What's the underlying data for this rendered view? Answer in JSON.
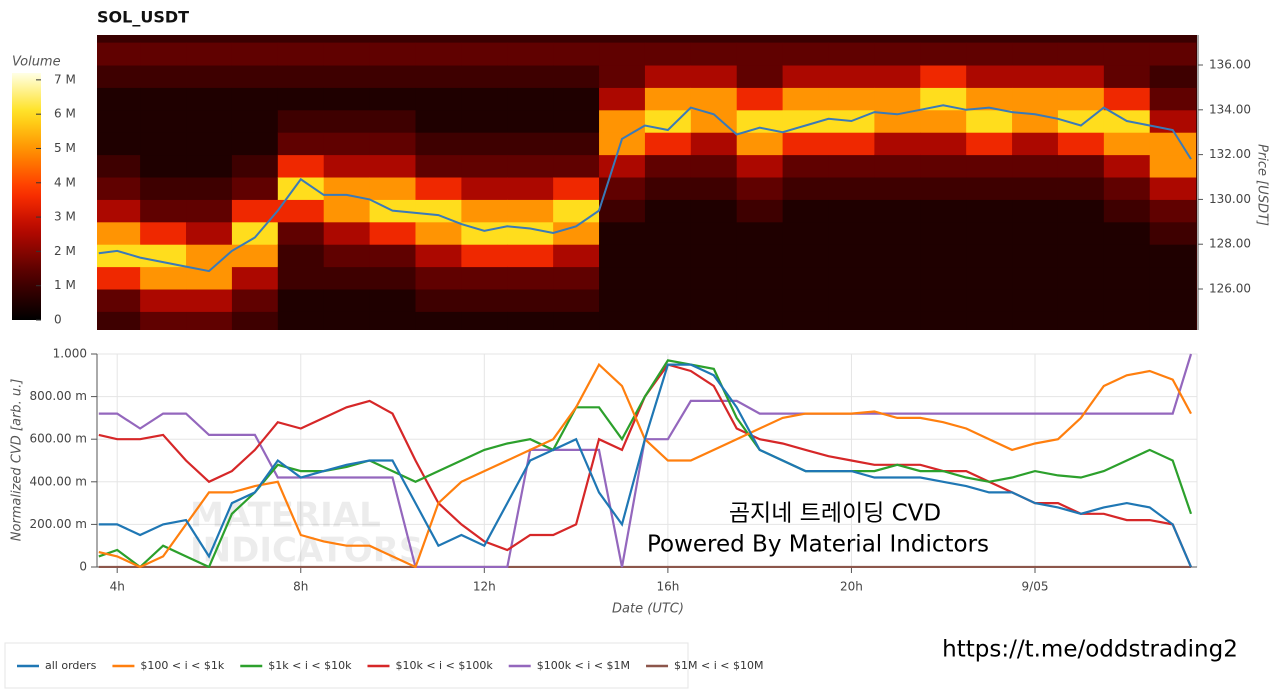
{
  "chart_data": [
    {
      "type": "heatmap",
      "title": "SOL_USDT",
      "x_bins": [
        3.5,
        4.5,
        5.5,
        6.5,
        7.5,
        8.5,
        9.5,
        10.5,
        11.5,
        12.5,
        13.5,
        14.5,
        15.5,
        16.5,
        17.5,
        18.5,
        19.5,
        20.5,
        21.5,
        22.5,
        23.5,
        24.5,
        25.5,
        26.5,
        27.5
      ],
      "y_bins": [
        124,
        125,
        126,
        127,
        128,
        129,
        130,
        131,
        132,
        133,
        134,
        135,
        136,
        137
      ],
      "z": [
        [
          1000000,
          1500000,
          3500000,
          6000000,
          5000000,
          2500000,
          1500000,
          1000000,
          500000,
          500000,
          500000,
          1000000,
          1500000
        ],
        [
          1500000,
          2500000,
          5000000,
          6000000,
          3500000,
          1500000,
          1000000,
          500000,
          500000,
          500000,
          500000,
          1000000,
          1500000
        ],
        [
          1500000,
          2500000,
          5000000,
          5000000,
          2500000,
          1500000,
          1000000,
          500000,
          500000,
          500000,
          500000,
          1000000,
          1500000
        ],
        [
          1000000,
          1500000,
          2500000,
          5000000,
          6000000,
          3500000,
          1500000,
          1000000,
          500000,
          500000,
          500000,
          1000000,
          1500000
        ],
        [
          500000,
          500000,
          1000000,
          1000000,
          1500000,
          3500000,
          6000000,
          3500000,
          1500000,
          1000000,
          500000,
          1000000,
          1500000
        ],
        [
          500000,
          500000,
          1000000,
          1500000,
          2500000,
          5000000,
          5000000,
          2500000,
          1500000,
          1000000,
          500000,
          1000000,
          1500000
        ],
        [
          500000,
          500000,
          1000000,
          1500000,
          3500000,
          6000000,
          5000000,
          2500000,
          1500000,
          1000000,
          500000,
          1000000,
          1500000
        ],
        [
          500000,
          1000000,
          1500000,
          2500000,
          5000000,
          6000000,
          3500000,
          1500000,
          1000000,
          500000,
          500000,
          1000000,
          1500000
        ],
        [
          500000,
          1000000,
          1500000,
          3500000,
          6000000,
          5000000,
          2500000,
          1500000,
          1000000,
          500000,
          500000,
          1000000,
          1500000
        ],
        [
          500000,
          1000000,
          1500000,
          3500000,
          6000000,
          5000000,
          2500000,
          1500000,
          1000000,
          500000,
          500000,
          1000000,
          1500000
        ],
        [
          500000,
          1000000,
          1500000,
          2500000,
          5000000,
          6000000,
          3500000,
          1500000,
          1000000,
          500000,
          500000,
          1000000,
          1500000
        ],
        [
          500000,
          500000,
          500000,
          500000,
          500000,
          1000000,
          1500000,
          2500000,
          5000000,
          5000000,
          2500000,
          1500000,
          1500000
        ],
        [
          500000,
          500000,
          500000,
          500000,
          500000,
          500000,
          1000000,
          1500000,
          3500000,
          6000000,
          5000000,
          2500000,
          1500000
        ],
        [
          500000,
          500000,
          500000,
          500000,
          500000,
          500000,
          1000000,
          1500000,
          2500000,
          5000000,
          5000000,
          2500000,
          1500000
        ],
        [
          500000,
          500000,
          500000,
          500000,
          500000,
          1000000,
          1500000,
          2500000,
          5000000,
          6000000,
          3500000,
          1500000,
          1500000
        ],
        [
          500000,
          500000,
          500000,
          500000,
          500000,
          500000,
          1000000,
          1500000,
          3500000,
          6000000,
          5000000,
          2500000,
          1500000
        ],
        [
          500000,
          500000,
          500000,
          500000,
          500000,
          500000,
          1000000,
          1500000,
          3500000,
          6000000,
          5000000,
          2500000,
          1500000
        ],
        [
          500000,
          500000,
          500000,
          500000,
          500000,
          500000,
          1000000,
          1500000,
          2500000,
          5000000,
          5000000,
          2500000,
          1500000
        ],
        [
          500000,
          500000,
          500000,
          500000,
          500000,
          500000,
          1000000,
          1500000,
          2500000,
          5000000,
          6000000,
          3500000,
          1500000
        ],
        [
          500000,
          500000,
          500000,
          500000,
          500000,
          500000,
          1000000,
          1500000,
          3500000,
          6000000,
          5000000,
          2500000,
          1500000
        ],
        [
          500000,
          500000,
          500000,
          500000,
          500000,
          500000,
          1000000,
          1500000,
          2500000,
          5000000,
          5000000,
          2500000,
          1500000
        ],
        [
          500000,
          500000,
          500000,
          500000,
          500000,
          500000,
          1000000,
          1500000,
          3500000,
          6000000,
          5000000,
          2500000,
          1500000
        ],
        [
          500000,
          500000,
          500000,
          500000,
          500000,
          1000000,
          1500000,
          2500000,
          5000000,
          6000000,
          3500000,
          1500000,
          1500000
        ],
        [
          500000,
          500000,
          500000,
          500000,
          1000000,
          1500000,
          2500000,
          5000000,
          5000000,
          2500000,
          1500000,
          1000000,
          1500000
        ]
      ],
      "colorbar_label": "Volume",
      "zlim": [
        0,
        7200000
      ],
      "zticks": [
        0,
        {
          "value": 1000000,
          "label": "1 M"
        },
        {
          "value": 2000000,
          "label": "2 M"
        },
        {
          "value": 3000000,
          "label": "3 M"
        },
        {
          "value": 4000000,
          "label": "4 M"
        },
        {
          "value": 5000000,
          "label": "5 M"
        },
        {
          "value": 6000000,
          "label": "6 M"
        },
        {
          "value": 7000000,
          "label": "7 M"
        }
      ],
      "xlim": [
        3.56,
        27.53
      ],
      "ylim": [
        124.17,
        137.34
      ],
      "yticks": [
        {
          "value": 126,
          "label": "126.00"
        },
        {
          "value": 128,
          "label": "128.00"
        },
        {
          "value": 130,
          "label": "130.00"
        },
        {
          "value": 132,
          "label": "132.00"
        },
        {
          "value": 134,
          "label": "134.00"
        },
        {
          "value": 136,
          "label": "136.00"
        }
      ],
      "ylabel": "Price [USDT]",
      "line": {
        "color": "#3a7ab8",
        "x": [
          3.6,
          4,
          4.5,
          5,
          5.5,
          6,
          6.5,
          7,
          7.5,
          8,
          8.5,
          9,
          9.5,
          10,
          10.5,
          11,
          11.5,
          12,
          12.5,
          13,
          13.5,
          14,
          14.5,
          15,
          15.5,
          16,
          16.5,
          17,
          17.5,
          18,
          18.5,
          19,
          19.5,
          20,
          20.5,
          21,
          21.5,
          22,
          22.5,
          23,
          23.5,
          24,
          24.5,
          25,
          25.5,
          26,
          26.5,
          27,
          27.4
        ],
        "values": [
          127.6,
          127.7,
          127.4,
          127.2,
          127.0,
          126.8,
          127.7,
          128.3,
          129.5,
          130.9,
          130.2,
          130.2,
          130.0,
          129.5,
          129.4,
          129.3,
          128.9,
          128.6,
          128.8,
          128.7,
          128.5,
          128.8,
          129.5,
          132.7,
          133.3,
          133.1,
          134.1,
          133.8,
          132.9,
          133.2,
          133.0,
          133.3,
          133.6,
          133.5,
          133.9,
          133.8,
          134.0,
          134.2,
          134.0,
          134.1,
          133.9,
          133.8,
          133.6,
          133.3,
          134.1,
          133.5,
          133.3,
          133.1,
          131.8
        ]
      }
    },
    {
      "type": "line",
      "x": [
        3.6,
        4,
        4.5,
        5,
        5.5,
        6,
        6.5,
        7,
        7.5,
        8,
        8.5,
        9,
        9.5,
        10,
        10.5,
        11,
        11.5,
        12,
        12.5,
        13,
        13.5,
        14,
        14.5,
        15,
        15.5,
        16,
        16.5,
        17,
        17.5,
        18,
        18.5,
        19,
        19.5,
        20,
        20.5,
        21,
        21.5,
        22,
        22.5,
        23,
        23.5,
        24,
        24.5,
        25,
        25.5,
        26,
        26.5,
        27,
        27.4
      ],
      "series": [
        {
          "name": "all orders",
          "color": "#1f77b4",
          "values": [
            0.2,
            0.2,
            0.15,
            0.2,
            0.22,
            0.05,
            0.3,
            0.35,
            0.5,
            0.42,
            0.45,
            0.48,
            0.5,
            0.5,
            0.3,
            0.1,
            0.15,
            0.1,
            0.3,
            0.5,
            0.55,
            0.6,
            0.35,
            0.2,
            0.6,
            0.95,
            0.95,
            0.9,
            0.75,
            0.55,
            0.5,
            0.45,
            0.45,
            0.45,
            0.42,
            0.42,
            0.42,
            0.4,
            0.38,
            0.35,
            0.35,
            0.3,
            0.28,
            0.25,
            0.28,
            0.3,
            0.28,
            0.2,
            0.0
          ]
        },
        {
          "name": "$100 < i < $1k",
          "color": "#ff7f0e",
          "values": [
            0.07,
            0.05,
            0.0,
            0.05,
            0.2,
            0.35,
            0.35,
            0.38,
            0.4,
            0.15,
            0.12,
            0.1,
            0.1,
            0.05,
            0.0,
            0.3,
            0.4,
            0.45,
            0.5,
            0.55,
            0.6,
            0.75,
            0.95,
            0.85,
            0.6,
            0.5,
            0.5,
            0.55,
            0.6,
            0.65,
            0.7,
            0.72,
            0.72,
            0.72,
            0.73,
            0.7,
            0.7,
            0.68,
            0.65,
            0.6,
            0.55,
            0.58,
            0.6,
            0.7,
            0.85,
            0.9,
            0.92,
            0.88,
            0.72
          ]
        },
        {
          "name": "$1k < i < $10k",
          "color": "#2ca02c",
          "values": [
            0.05,
            0.08,
            0.0,
            0.1,
            0.05,
            0.0,
            0.25,
            0.35,
            0.48,
            0.45,
            0.45,
            0.47,
            0.5,
            0.45,
            0.4,
            0.45,
            0.5,
            0.55,
            0.58,
            0.6,
            0.55,
            0.75,
            0.75,
            0.6,
            0.8,
            0.97,
            0.95,
            0.93,
            0.7,
            0.55,
            0.5,
            0.45,
            0.45,
            0.45,
            0.45,
            0.48,
            0.45,
            0.45,
            0.42,
            0.4,
            0.42,
            0.45,
            0.43,
            0.42,
            0.45,
            0.5,
            0.55,
            0.5,
            0.25
          ]
        },
        {
          "name": "$10k < i < $100k",
          "color": "#d62728",
          "values": [
            0.62,
            0.6,
            0.6,
            0.62,
            0.5,
            0.4,
            0.45,
            0.55,
            0.68,
            0.65,
            0.7,
            0.75,
            0.78,
            0.72,
            0.5,
            0.3,
            0.2,
            0.12,
            0.08,
            0.15,
            0.15,
            0.2,
            0.6,
            0.55,
            0.8,
            0.95,
            0.92,
            0.85,
            0.65,
            0.6,
            0.58,
            0.55,
            0.52,
            0.5,
            0.48,
            0.48,
            0.48,
            0.45,
            0.45,
            0.4,
            0.35,
            0.3,
            0.3,
            0.25,
            0.25,
            0.22,
            0.22,
            0.2,
            0.0
          ]
        },
        {
          "name": "$100k < i < $1M",
          "color": "#9467bd",
          "values": [
            0.72,
            0.72,
            0.65,
            0.72,
            0.72,
            0.62,
            0.62,
            0.62,
            0.42,
            0.42,
            0.42,
            0.42,
            0.42,
            0.42,
            0.0,
            0.0,
            0.0,
            0.0,
            0.0,
            0.55,
            0.55,
            0.55,
            0.55,
            0.0,
            0.6,
            0.6,
            0.78,
            0.78,
            0.78,
            0.72,
            0.72,
            0.72,
            0.72,
            0.72,
            0.72,
            0.72,
            0.72,
            0.72,
            0.72,
            0.72,
            0.72,
            0.72,
            0.72,
            0.72,
            0.72,
            0.72,
            0.72,
            0.72,
            1.0
          ]
        },
        {
          "name": "$1M < i < $10M",
          "color": "#8c564b",
          "values": [
            0,
            0,
            0,
            0,
            0,
            0,
            0,
            0,
            0,
            0,
            0,
            0,
            0,
            0,
            0,
            0,
            0,
            0,
            0,
            0,
            0,
            0,
            0,
            0,
            0,
            0,
            0,
            0,
            0,
            0,
            0,
            0,
            0,
            0,
            0,
            0,
            0,
            0,
            0,
            0,
            0,
            0,
            0,
            0,
            0,
            0,
            0,
            0,
            0
          ]
        }
      ],
      "xlim": [
        3.56,
        27.53
      ],
      "ylim": [
        0,
        1
      ],
      "xticks": [
        {
          "value": 4,
          "label": "4h"
        },
        {
          "value": 8,
          "label": "8h"
        },
        {
          "value": 12,
          "label": "12h"
        },
        {
          "value": 16,
          "label": "16h"
        },
        {
          "value": 20,
          "label": "20h"
        },
        {
          "value": 24,
          "label": "9/05"
        }
      ],
      "yticks": [
        0,
        {
          "value": 0.2,
          "label": "200.00 m"
        },
        {
          "value": 0.4,
          "label": "400.00 m"
        },
        {
          "value": 0.6,
          "label": "600.00 m"
        },
        {
          "value": 0.8,
          "label": "800.00 m"
        },
        {
          "value": 1,
          "label": "1.000"
        }
      ],
      "xlabel": "Date (UTC)",
      "ylabel": "Normalized CVD [arb. u.]",
      "grid": true,
      "legend": "bottom",
      "watermark": [
        "MATERIAL",
        "INDICATORS"
      ],
      "annotations": [
        "곰지네 트레이딩 CVD",
        "Powered By Material Indictors"
      ]
    }
  ],
  "footer": {
    "link": "https://t.me/oddstrading2"
  }
}
